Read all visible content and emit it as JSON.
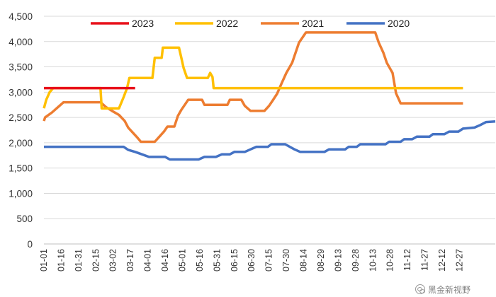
{
  "chart_data": {
    "type": "line",
    "title": "",
    "xlabel": "",
    "ylabel": "",
    "ylim": [
      0,
      4500
    ],
    "y_ticks": [
      "4,500",
      "4,000",
      "3,500",
      "3,000",
      "2,500",
      "2,000",
      "1,500",
      "1,000",
      "500",
      "0"
    ],
    "x_ticks": [
      "01-01",
      "01-16",
      "01-31",
      "02-15",
      "03-02",
      "03-17",
      "04-01",
      "04-16",
      "05-01",
      "05-16",
      "05-31",
      "06-15",
      "06-30",
      "07-15",
      "07-30",
      "08-14",
      "08-29",
      "09-13",
      "09-28",
      "10-13",
      "10-28",
      "11-12",
      "11-27",
      "12-12",
      "12-27"
    ],
    "grid": "horizontal",
    "legend": "top",
    "series": [
      {
        "name": "2023",
        "color": "#e8101a",
        "points": [
          [
            1,
            3080
          ],
          [
            80,
            3080
          ]
        ]
      },
      {
        "name": "2022",
        "color": "#ffc000",
        "points": [
          [
            1,
            2680
          ],
          [
            3,
            2850
          ],
          [
            6,
            3000
          ],
          [
            9,
            3080
          ],
          [
            50,
            3080
          ],
          [
            51,
            2680
          ],
          [
            66,
            2680
          ],
          [
            70,
            2900
          ],
          [
            73,
            3080
          ],
          [
            75,
            3280
          ],
          [
            95,
            3280
          ],
          [
            97,
            3680
          ],
          [
            103,
            3680
          ],
          [
            104,
            3880
          ],
          [
            118,
            3880
          ],
          [
            120,
            3680
          ],
          [
            122,
            3480
          ],
          [
            125,
            3280
          ],
          [
            143,
            3280
          ],
          [
            145,
            3380
          ],
          [
            147,
            3300
          ],
          [
            148,
            3080
          ],
          [
            364,
            3080
          ]
        ]
      },
      {
        "name": "2021",
        "color": "#ed7d31",
        "points": [
          [
            1,
            2430
          ],
          [
            2,
            2500
          ],
          [
            8,
            2600
          ],
          [
            13,
            2700
          ],
          [
            18,
            2800
          ],
          [
            50,
            2800
          ],
          [
            55,
            2700
          ],
          [
            60,
            2630
          ],
          [
            66,
            2550
          ],
          [
            71,
            2430
          ],
          [
            74,
            2300
          ],
          [
            78,
            2200
          ],
          [
            82,
            2100
          ],
          [
            85,
            2020
          ],
          [
            97,
            2020
          ],
          [
            101,
            2120
          ],
          [
            105,
            2220
          ],
          [
            108,
            2320
          ],
          [
            114,
            2320
          ],
          [
            117,
            2530
          ],
          [
            120,
            2650
          ],
          [
            123,
            2750
          ],
          [
            126,
            2850
          ],
          [
            138,
            2850
          ],
          [
            140,
            2750
          ],
          [
            160,
            2750
          ],
          [
            162,
            2850
          ],
          [
            172,
            2850
          ],
          [
            175,
            2730
          ],
          [
            180,
            2630
          ],
          [
            192,
            2630
          ],
          [
            196,
            2730
          ],
          [
            199,
            2830
          ],
          [
            203,
            2970
          ],
          [
            207,
            3180
          ],
          [
            211,
            3380
          ],
          [
            216,
            3580
          ],
          [
            222,
            3980
          ],
          [
            228,
            4180
          ],
          [
            288,
            4180
          ],
          [
            291,
            3980
          ],
          [
            295,
            3780
          ],
          [
            298,
            3580
          ],
          [
            303,
            3380
          ],
          [
            306,
            2980
          ],
          [
            310,
            2780
          ],
          [
            364,
            2780
          ]
        ]
      },
      {
        "name": "2020",
        "color": "#4472c4",
        "points": [
          [
            1,
            1920
          ],
          [
            70,
            1920
          ],
          [
            74,
            1860
          ],
          [
            80,
            1820
          ],
          [
            86,
            1770
          ],
          [
            92,
            1720
          ],
          [
            106,
            1720
          ],
          [
            110,
            1670
          ],
          [
            135,
            1670
          ],
          [
            140,
            1720
          ],
          [
            150,
            1720
          ],
          [
            155,
            1770
          ],
          [
            162,
            1770
          ],
          [
            166,
            1820
          ],
          [
            175,
            1820
          ],
          [
            180,
            1870
          ],
          [
            185,
            1920
          ],
          [
            195,
            1920
          ],
          [
            198,
            1970
          ],
          [
            210,
            1970
          ],
          [
            214,
            1920
          ],
          [
            218,
            1870
          ],
          [
            223,
            1820
          ],
          [
            244,
            1820
          ],
          [
            248,
            1870
          ],
          [
            262,
            1870
          ],
          [
            265,
            1920
          ],
          [
            272,
            1920
          ],
          [
            275,
            1970
          ],
          [
            297,
            1970
          ],
          [
            300,
            2020
          ],
          [
            310,
            2020
          ],
          [
            313,
            2070
          ],
          [
            320,
            2070
          ],
          [
            324,
            2120
          ],
          [
            335,
            2120
          ],
          [
            338,
            2170
          ],
          [
            348,
            2170
          ],
          [
            352,
            2220
          ],
          [
            360,
            2220
          ],
          [
            364,
            2280
          ],
          [
            374,
            2300
          ],
          [
            379,
            2350
          ],
          [
            384,
            2410
          ],
          [
            392,
            2420
          ]
        ]
      }
    ]
  },
  "watermark": {
    "text": "黑金新视野",
    "icon": "wechat-icon"
  }
}
